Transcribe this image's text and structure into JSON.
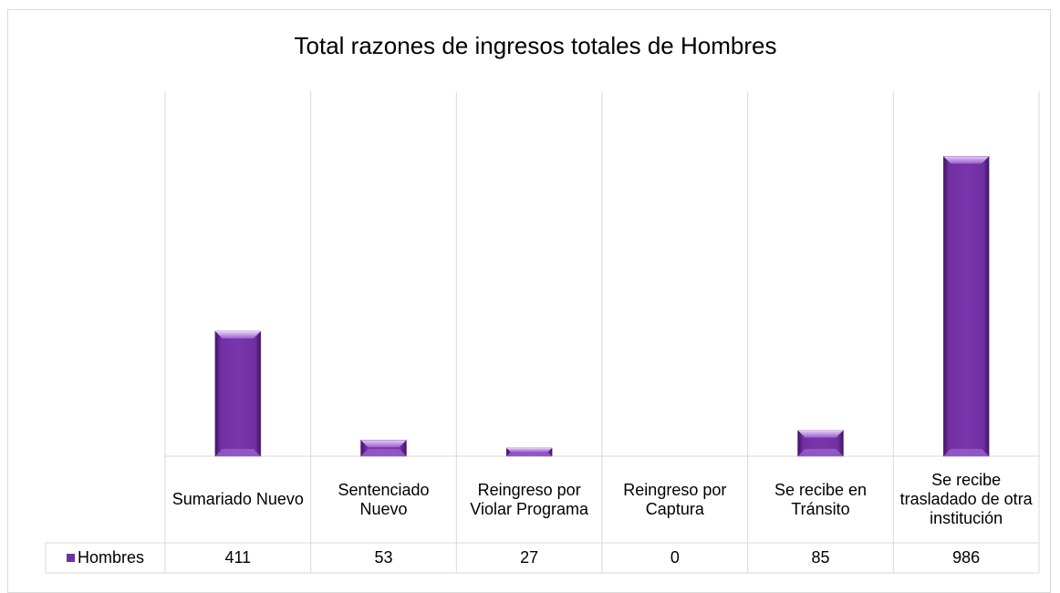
{
  "chart_data": {
    "type": "bar",
    "title": "Total razones de ingresos totales de Hombres",
    "categories": [
      "Sumariado Nuevo",
      "Sentenciado Nuevo",
      "Reingreso por Violar Programa",
      "Reingreso por Captura",
      "Se recibe en Tránsito",
      "Se recibe trasladado de otra institución"
    ],
    "series": [
      {
        "name": "Hombres",
        "color": "#7030a0",
        "values": [
          411,
          53,
          27,
          0,
          85,
          986
        ]
      }
    ],
    "ylim": [
      0,
      1200
    ],
    "grid": false
  }
}
